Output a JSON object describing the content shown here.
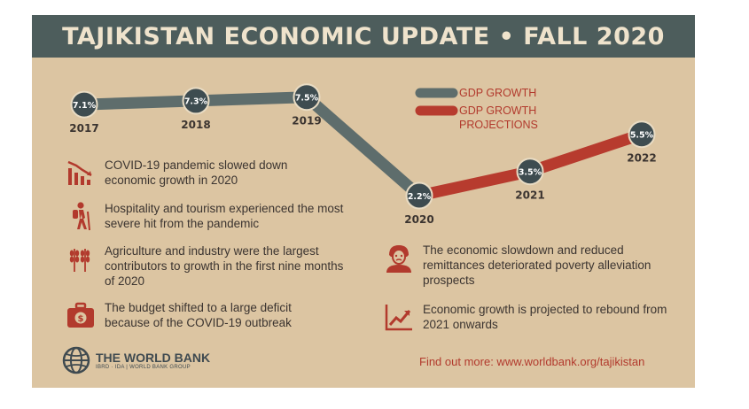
{
  "title": "TAJIKISTAN ECONOMIC UPDATE • FALL 2020",
  "colors": {
    "banner": "#4d5d5c",
    "background": "#dcc5a2",
    "actual": "#5e6d6c",
    "projection": "#b73b2e",
    "dot": "#3e4c50",
    "text": "#3b3430",
    "accent": "#b23a2d"
  },
  "chart_data": {
    "type": "line",
    "title": "",
    "xlabel": "",
    "ylabel": "",
    "legend_position": "top-right",
    "categories": [
      "2017",
      "2018",
      "2019",
      "2020",
      "2021",
      "2022"
    ],
    "series": [
      {
        "name": "GDP GROWTH",
        "x": [
          "2017",
          "2018",
          "2019",
          "2020"
        ],
        "values": [
          7.1,
          7.3,
          7.5,
          2.2
        ],
        "labels": [
          "7.1%",
          "7.3%",
          "7.5%",
          "2.2%"
        ]
      },
      {
        "name": "GDP GROWTH PROJECTIONS",
        "x": [
          "2020",
          "2021",
          "2022"
        ],
        "values": [
          2.2,
          3.5,
          5.5
        ],
        "labels": [
          "2.2%",
          "3.5%",
          "5.5%"
        ]
      }
    ]
  },
  "legend": {
    "actual": "GDP GROWTH",
    "projection_line1": "GDP GROWTH",
    "projection_line2": "PROJECTIONS"
  },
  "facts": [
    {
      "icon": "bar-chart-decline-icon",
      "text": "COVID-19 pandemic slowed down economic growth in 2020"
    },
    {
      "icon": "hiker-icon",
      "text": "Hospitality and tourism experienced the most severe hit from the pandemic"
    },
    {
      "icon": "wheat-icon",
      "text": "Agriculture and industry were the largest contributors to growth in the first nine months of 2020"
    },
    {
      "icon": "money-briefcase-icon",
      "text": "The budget shifted to a large deficit because of the COVID-19 outbreak"
    },
    {
      "icon": "person-icon",
      "text": "The economic slowdown and reduced remittances deteriorated poverty alleviation prospects"
    },
    {
      "icon": "line-chart-rising-icon",
      "text": "Economic growth is projected to rebound from 2021 onwards"
    }
  ],
  "footer": {
    "org_name": "THE WORLD BANK",
    "org_sub": "IBRD · IDA | WORLD BANK GROUP",
    "find_out": "Find out more: www.worldbank.org/tajikistan"
  }
}
